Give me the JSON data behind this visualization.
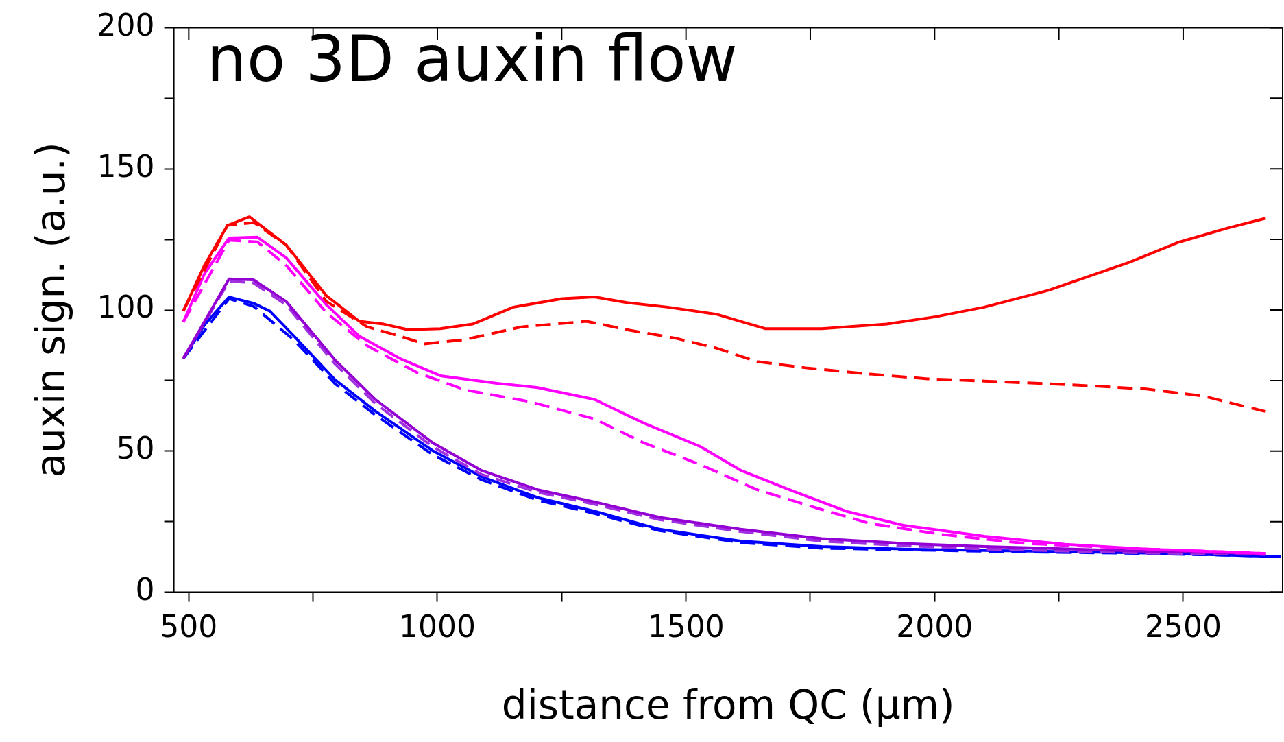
{
  "chart_data": {
    "type": "line",
    "xlabel": "distance from QC (µm)",
    "ylabel": "auxin sign. (a.u.)",
    "annotations": [
      "no 3D auxin flow"
    ],
    "xlim": [
      470,
      2700
    ],
    "xticks": [
      500,
      {
        "value": 750,
        "label": null
      },
      1000,
      {
        "value": 1250,
        "label": null
      },
      1500,
      {
        "value": 1750,
        "label": null
      },
      2000,
      {
        "value": 2250,
        "label": null
      },
      2500
    ],
    "ylim": [
      0,
      200
    ],
    "yticks": [
      0,
      {
        "value": 25,
        "label": null
      },
      50,
      {
        "value": 75,
        "label": null
      },
      100,
      {
        "value": 125,
        "label": null
      },
      150,
      {
        "value": 175,
        "label": null
      },
      200
    ],
    "marker": "none",
    "legend": false,
    "series": [
      {
        "color": "#ff0000",
        "line_style": "solid",
        "x": [
          489,
          532,
          578,
          622,
          696,
          777,
          843,
          892,
          941,
          1006,
          1071,
          1153,
          1251,
          1316,
          1381,
          1463,
          1561,
          1659,
          1773,
          1904,
          2002,
          2100,
          2230,
          2393,
          2491,
          2589,
          2666
        ],
        "values": [
          99.6,
          116,
          130,
          133,
          123,
          105,
          96,
          95,
          93,
          93.4,
          95,
          101,
          104,
          104.6,
          102.6,
          101,
          98.5,
          93.4,
          93.4,
          95,
          97.6,
          101,
          107,
          117,
          124,
          129,
          132.5
        ]
      },
      {
        "color": "#ff0000",
        "line_style": "dashed",
        "x": [
          489,
          578,
          631,
          696,
          777,
          859,
          925,
          974,
          1055,
          1169,
          1300,
          1381,
          1479,
          1561,
          1643,
          1741,
          1855,
          1986,
          2100,
          2263,
          2426,
          2540,
          2666
        ],
        "values": [
          99.6,
          130,
          131,
          123,
          103,
          94,
          90.7,
          88,
          89.5,
          94,
          96,
          93,
          90,
          86.5,
          81.7,
          79.5,
          77.5,
          75.6,
          74.8,
          73.6,
          72,
          69.5,
          64
        ]
      },
      {
        "color": "#ff00ff",
        "line_style": "solid",
        "x": [
          489,
          532,
          581,
          638,
          696,
          777,
          843,
          925,
          1006,
          1120,
          1202,
          1316,
          1414,
          1529,
          1610,
          1708,
          1822,
          1937,
          2100,
          2263,
          2426,
          2666
        ],
        "values": [
          95.7,
          113,
          125.5,
          125.8,
          118.5,
          101.8,
          90.7,
          82.8,
          76.7,
          74,
          72.5,
          68.3,
          60,
          51.6,
          43.2,
          36.3,
          28.7,
          23.7,
          19.8,
          17,
          15.3,
          13.7
        ]
      },
      {
        "color": "#ff00ff",
        "line_style": "dashed",
        "x": [
          489,
          581,
          638,
          696,
          777,
          859,
          957,
          1055,
          1186,
          1316,
          1414,
          1529,
          1643,
          1773,
          1871,
          2018,
          2181,
          2426,
          2666
        ],
        "values": [
          95.7,
          124.7,
          124.1,
          115.8,
          99,
          87.3,
          78,
          71.7,
          67.5,
          61.4,
          53,
          45.2,
          36.3,
          29.3,
          24.3,
          20.4,
          17.3,
          15.3,
          13.7
        ]
      },
      {
        "color": "#9400d3",
        "line_style": "solid",
        "x": [
          489,
          532,
          581,
          630,
          696,
          794,
          875,
          990,
          1088,
          1202,
          1316,
          1447,
          1610,
          1773,
          1937,
          2100,
          2426,
          2666
        ],
        "values": [
          82.8,
          96,
          111,
          110.7,
          103,
          82.3,
          68.3,
          53,
          43.2,
          36.3,
          32,
          26.5,
          22.3,
          19,
          17.3,
          16.2,
          14.5,
          13.7
        ]
      },
      {
        "color": "#a030e0",
        "line_style": "dashed",
        "x": [
          489,
          581,
          630,
          696,
          794,
          875,
          990,
          1088,
          1202,
          1316,
          1447,
          1610,
          1773,
          1937,
          2100,
          2426,
          2666
        ],
        "values": [
          82.8,
          110.2,
          109.6,
          101.8,
          80.9,
          66.9,
          51.6,
          41.8,
          35.4,
          31.2,
          25.7,
          21.5,
          18.1,
          16.5,
          15.3,
          13.9,
          13.4
        ]
      },
      {
        "color": "#0000ff",
        "line_style": "solid",
        "x": [
          489,
          532,
          581,
          630,
          663,
          712,
          794,
          875,
          990,
          1088,
          1202,
          1316,
          1447,
          1610,
          1773,
          1937,
          2100,
          2426,
          2697
        ],
        "values": [
          82.8,
          94.8,
          104.6,
          102.4,
          99.6,
          90.7,
          75.3,
          64.2,
          50.2,
          41,
          33.5,
          28.7,
          22.3,
          18.1,
          16.2,
          15.3,
          14.8,
          13.9,
          12.6
        ]
      },
      {
        "color": "#0000ff",
        "line_style": "dashed",
        "x": [
          489,
          581,
          630,
          712,
          794,
          875,
          990,
          1088,
          1202,
          1316,
          1447,
          1610,
          1773,
          2100,
          2426,
          2666
        ],
        "values": [
          82.8,
          104,
          101.3,
          89.3,
          73.9,
          62.8,
          48.8,
          39.9,
          32.6,
          27.9,
          21.8,
          17.6,
          15.6,
          14.5,
          13.7,
          12.8
        ]
      }
    ]
  }
}
